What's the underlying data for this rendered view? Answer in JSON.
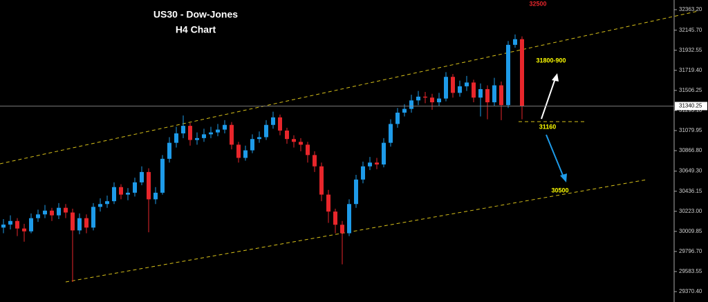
{
  "chart_data": {
    "type": "candlestick",
    "title": "US30 - Dow-Jones",
    "subtitle": "H4 Chart",
    "up_color": "#1e9be9",
    "down_color": "#e8262b",
    "ylim": [
      29260,
      32466
    ],
    "yticks": [
      {
        "value": 32363.2,
        "label": "32363.20"
      },
      {
        "value": 32145.7,
        "label": "32145.70"
      },
      31932.55,
      {
        "value": 31719.4,
        "label": "31719.40"
      },
      31506.25,
      {
        "value": 31293.1,
        "label": "31293.10"
      },
      31079.95,
      {
        "value": 30866.8,
        "label": "30866.80"
      },
      {
        "value": 30649.3,
        "label": "30649.30"
      },
      30436.15,
      {
        "value": 30223,
        "label": "30223.00"
      },
      30009.85,
      {
        "value": 29796.7,
        "label": "29796.70"
      },
      29583.55,
      {
        "value": 29370.4,
        "label": "29370.40"
      }
    ],
    "current_price": 31340.25,
    "annotations": [
      "32500",
      "31800-900",
      "31160",
      "30500"
    ],
    "open": [
      30050,
      30082,
      30120,
      30040,
      30010,
      30150,
      30190,
      30230,
      30180,
      30260,
      30210,
      30020,
      30150,
      30050,
      30270,
      30300,
      30330,
      30480,
      30400,
      30420,
      30530,
      30640,
      30350,
      30420,
      30780,
      30950,
      31050,
      31130,
      30980,
      31000,
      31040,
      31060,
      31090,
      31140,
      30930,
      30790,
      30870,
      30990,
      31010,
      31140,
      31220,
      31080,
      30990,
      30960,
      30930,
      30820,
      30700,
      30400,
      30220,
      30080,
      29990,
      30300,
      30560,
      30700,
      30740,
      30720,
      30950,
      31150,
      31270,
      31310,
      31400,
      31440,
      31430,
      31380,
      31420,
      31650,
      31480,
      31550,
      31590,
      31430,
      31520,
      31380,
      31560,
      31350,
      31990,
      32050
    ],
    "high": [
      30140,
      30180,
      30150,
      30090,
      30200,
      30240,
      30290,
      30260,
      30310,
      30300,
      30250,
      30200,
      30190,
      30310,
      30360,
      30390,
      30530,
      30510,
      30470,
      30580,
      30700,
      30680,
      30480,
      30820,
      31010,
      31120,
      31240,
      31160,
      31060,
      31100,
      31120,
      31150,
      31190,
      31170,
      30960,
      30920,
      31040,
      31070,
      31190,
      31280,
      31250,
      31110,
      31030,
      31000,
      30960,
      30860,
      30740,
      30450,
      30250,
      30120,
      30350,
      30610,
      30750,
      30800,
      30790,
      31000,
      31200,
      31320,
      31360,
      31460,
      31500,
      31490,
      31470,
      31480,
      31700,
      31680,
      31610,
      31660,
      31620,
      31580,
      31560,
      31640,
      31600,
      32030,
      32100,
      32080
    ],
    "low": [
      29990,
      30030,
      29960,
      29900,
      29990,
      30110,
      30150,
      30120,
      30140,
      30150,
      29473,
      29980,
      29990,
      30020,
      30220,
      30260,
      30300,
      30350,
      30340,
      30380,
      30500,
      30000,
      30300,
      30400,
      30740,
      30900,
      31000,
      30920,
      30930,
      30960,
      31000,
      31020,
      31050,
      30880,
      30740,
      30760,
      30840,
      30950,
      30980,
      31100,
      31030,
      30940,
      30900,
      30860,
      30740,
      30640,
      30330,
      30100,
      29990,
      29660,
      29960,
      30260,
      30520,
      30660,
      30670,
      30690,
      30910,
      31110,
      31230,
      31270,
      31350,
      31370,
      31300,
      31340,
      31390,
      31430,
      31440,
      31500,
      31380,
      31230,
      31200,
      31340,
      31190,
      31320,
      31960,
      31200
    ],
    "close": [
      30082,
      30120,
      30040,
      30010,
      30150,
      30190,
      30230,
      30180,
      30260,
      30210,
      30020,
      30150,
      30050,
      30270,
      30300,
      30330,
      30480,
      30400,
      30420,
      30530,
      30640,
      30350,
      30420,
      30780,
      30950,
      31050,
      31130,
      30980,
      31000,
      31040,
      31060,
      31090,
      31140,
      30930,
      30790,
      30870,
      30990,
      31010,
      31140,
      31220,
      31080,
      30990,
      30960,
      30930,
      30820,
      30700,
      30400,
      30220,
      30080,
      29990,
      30300,
      30560,
      30700,
      30740,
      30720,
      30950,
      31150,
      31270,
      31310,
      31400,
      31440,
      31430,
      31380,
      31420,
      31650,
      31480,
      31550,
      31590,
      31430,
      31520,
      31380,
      31560,
      31350,
      31990,
      32050,
      31340
    ]
  }
}
